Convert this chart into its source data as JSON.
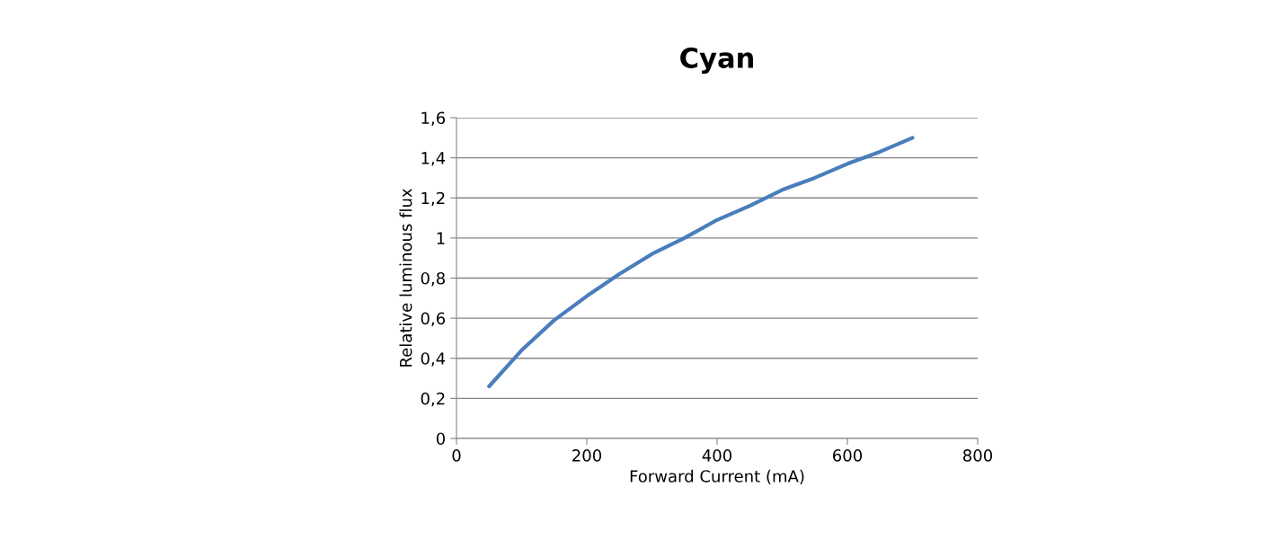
{
  "chart_data": {
    "type": "line",
    "title": "Cyan",
    "xlabel": "Forward Current (mA)",
    "ylabel": "Relative luminous flux",
    "x": [
      50,
      100,
      150,
      200,
      250,
      300,
      350,
      400,
      450,
      500,
      550,
      600,
      650,
      700
    ],
    "series": [
      {
        "color": "#4a7ebb",
        "values": [
          0.26,
          0.44,
          0.59,
          0.71,
          0.82,
          0.92,
          1.0,
          1.09,
          1.16,
          1.24,
          1.3,
          1.37,
          1.43,
          1.5
        ]
      }
    ],
    "xlim": [
      0,
      800
    ],
    "xticks": [
      0,
      200,
      400,
      600,
      800
    ],
    "ylim": [
      0,
      1.6
    ],
    "yticks": [
      0,
      {
        "value": 0.2,
        "label": "0,2"
      },
      {
        "value": 0.4,
        "label": "0,4"
      },
      {
        "value": 0.6,
        "label": "0,6"
      },
      {
        "value": 0.8,
        "label": "0,8"
      },
      1,
      {
        "value": 1.2,
        "label": "1,2"
      },
      {
        "value": 1.4,
        "label": "1,4"
      },
      {
        "value": 1.6,
        "label": "1,6"
      }
    ],
    "grid": "y",
    "marker": "none",
    "line_style": "solid"
  }
}
